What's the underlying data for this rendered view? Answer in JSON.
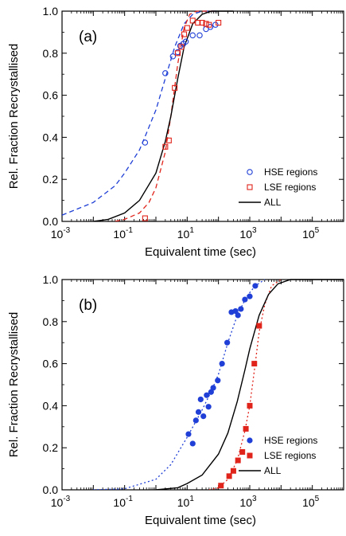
{
  "chart_data": [
    {
      "type": "scatter",
      "panel_label": "(a)",
      "xlabel": "Equivalent time (sec)",
      "ylabel": "Rel. Fraction Recrystallised",
      "x_scale": "log",
      "xlim": [
        0.001,
        1000000
      ],
      "ylim": [
        0,
        1.0
      ],
      "x_tick_bases": [
        "10",
        "10",
        "10",
        "10",
        "10"
      ],
      "x_tick_exps": [
        "-3",
        "-1",
        "1",
        "3",
        "5"
      ],
      "x_tick_values": [
        0.001,
        0.1,
        10,
        1000,
        100000
      ],
      "y_ticks": [
        "0.0",
        "0.2",
        "0.4",
        "0.6",
        "0.8",
        "1.0"
      ],
      "y_tick_values": [
        0,
        0.2,
        0.4,
        0.6,
        0.8,
        1.0
      ],
      "legend_position": "lower-right",
      "series": [
        {
          "name": "HSE regions",
          "color": "#1f3fd6",
          "marker": "open-circle",
          "points": [
            [
              0.45,
              0.375
            ],
            [
              2.0,
              0.705
            ],
            [
              3.5,
              0.785
            ],
            [
              5.0,
              0.805
            ],
            [
              6.0,
              0.835
            ],
            [
              7.5,
              0.845
            ],
            [
              9.0,
              0.855
            ],
            [
              15,
              0.885
            ],
            [
              25,
              0.885
            ],
            [
              40,
              0.915
            ],
            [
              55,
              0.925
            ],
            [
              80,
              0.935
            ]
          ],
          "fit": [
            [
              0.001,
              0.03
            ],
            [
              0.01,
              0.09
            ],
            [
              0.05,
              0.17
            ],
            [
              0.1,
              0.23
            ],
            [
              0.3,
              0.34
            ],
            [
              0.5,
              0.42
            ],
            [
              1,
              0.53
            ],
            [
              2,
              0.68
            ],
            [
              4,
              0.83
            ],
            [
              8,
              0.94
            ],
            [
              15,
              0.985
            ],
            [
              30,
              1.0
            ],
            [
              100,
              1.0
            ]
          ]
        },
        {
          "name": "LSE regions",
          "color": "#e0241b",
          "marker": "open-square",
          "points": [
            [
              0.45,
              0.015
            ],
            [
              2.0,
              0.355
            ],
            [
              2.6,
              0.385
            ],
            [
              4.0,
              0.635
            ],
            [
              5.0,
              0.8
            ],
            [
              6.5,
              0.83
            ],
            [
              8.0,
              0.89
            ],
            [
              10,
              0.92
            ],
            [
              15,
              0.955
            ],
            [
              22,
              0.945
            ],
            [
              30,
              0.945
            ],
            [
              40,
              0.94
            ],
            [
              50,
              0.935
            ],
            [
              100,
              0.945
            ]
          ],
          "fit": [
            [
              0.05,
              0.0
            ],
            [
              0.1,
              0.01
            ],
            [
              0.3,
              0.04
            ],
            [
              0.6,
              0.09
            ],
            [
              1,
              0.16
            ],
            [
              2,
              0.33
            ],
            [
              3,
              0.5
            ],
            [
              5,
              0.75
            ],
            [
              8,
              0.92
            ],
            [
              12,
              0.985
            ],
            [
              20,
              1.0
            ],
            [
              100,
              1.0
            ]
          ]
        },
        {
          "name": "ALL",
          "color": "#000000",
          "marker": "line",
          "fit": [
            [
              0.01,
              0.0
            ],
            [
              0.03,
              0.01
            ],
            [
              0.1,
              0.04
            ],
            [
              0.3,
              0.1
            ],
            [
              1,
              0.23
            ],
            [
              2,
              0.38
            ],
            [
              3,
              0.5
            ],
            [
              5,
              0.68
            ],
            [
              8,
              0.83
            ],
            [
              15,
              0.94
            ],
            [
              30,
              0.985
            ],
            [
              60,
              1.0
            ],
            [
              300,
              1.0
            ]
          ]
        }
      ]
    },
    {
      "type": "scatter",
      "panel_label": "(b)",
      "xlabel": "Equivalent time (sec)",
      "ylabel": "Rel. Fraction Recrystallised",
      "x_scale": "log",
      "xlim": [
        0.001,
        1000000
      ],
      "ylim": [
        0,
        1.0
      ],
      "x_tick_bases": [
        "10",
        "10",
        "10",
        "10",
        "10"
      ],
      "x_tick_exps": [
        "-3",
        "-1",
        "1",
        "3",
        "5"
      ],
      "x_tick_values": [
        0.001,
        0.1,
        10,
        1000,
        100000
      ],
      "y_ticks": [
        "0.0",
        "0.2",
        "0.4",
        "0.6",
        "0.8",
        "1.0"
      ],
      "y_tick_values": [
        0,
        0.2,
        0.4,
        0.6,
        0.8,
        1.0
      ],
      "legend_position": "lower-right",
      "series": [
        {
          "name": "HSE regions",
          "color": "#1f3fd6",
          "marker": "filled-circle",
          "points": [
            [
              11,
              0.265
            ],
            [
              15,
              0.22
            ],
            [
              19,
              0.33
            ],
            [
              23,
              0.37
            ],
            [
              27,
              0.43
            ],
            [
              33,
              0.35
            ],
            [
              42,
              0.45
            ],
            [
              48,
              0.395
            ],
            [
              58,
              0.465
            ],
            [
              68,
              0.485
            ],
            [
              95,
              0.52
            ],
            [
              130,
              0.6
            ],
            [
              190,
              0.7
            ],
            [
              260,
              0.845
            ],
            [
              350,
              0.85
            ],
            [
              420,
              0.83
            ],
            [
              520,
              0.86
            ],
            [
              700,
              0.905
            ],
            [
              1000,
              0.92
            ],
            [
              1500,
              0.97
            ]
          ],
          "fit": [
            [
              0.01,
              0.0
            ],
            [
              0.1,
              0.005
            ],
            [
              1,
              0.05
            ],
            [
              3,
              0.12
            ],
            [
              10,
              0.25
            ],
            [
              30,
              0.38
            ],
            [
              60,
              0.47
            ],
            [
              100,
              0.55
            ],
            [
              200,
              0.7
            ],
            [
              400,
              0.83
            ],
            [
              800,
              0.92
            ],
            [
              1500,
              0.97
            ],
            [
              3000,
              1.0
            ]
          ]
        },
        {
          "name": "LSE regions",
          "color": "#e0241b",
          "marker": "filled-square",
          "points": [
            [
              120,
              0.02
            ],
            [
              220,
              0.065
            ],
            [
              300,
              0.09
            ],
            [
              420,
              0.14
            ],
            [
              580,
              0.18
            ],
            [
              750,
              0.29
            ],
            [
              1000,
              0.4
            ],
            [
              1400,
              0.6
            ],
            [
              2000,
              0.78
            ]
          ],
          "fit": [
            [
              50,
              0.0
            ],
            [
              100,
              0.01
            ],
            [
              200,
              0.05
            ],
            [
              400,
              0.14
            ],
            [
              700,
              0.28
            ],
            [
              1000,
              0.4
            ],
            [
              1500,
              0.6
            ],
            [
              2000,
              0.75
            ],
            [
              3000,
              0.88
            ],
            [
              5000,
              0.97
            ],
            [
              10000,
              1.0
            ]
          ]
        },
        {
          "name": "ALL",
          "color": "#000000",
          "marker": "line",
          "fit": [
            [
              1,
              0.0
            ],
            [
              5,
              0.01
            ],
            [
              10,
              0.03
            ],
            [
              30,
              0.07
            ],
            [
              100,
              0.17
            ],
            [
              200,
              0.27
            ],
            [
              400,
              0.42
            ],
            [
              700,
              0.57
            ],
            [
              1000,
              0.67
            ],
            [
              2000,
              0.83
            ],
            [
              4000,
              0.93
            ],
            [
              8000,
              0.98
            ],
            [
              20000,
              1.0
            ],
            [
              1000000,
              1.0
            ]
          ]
        }
      ]
    }
  ]
}
